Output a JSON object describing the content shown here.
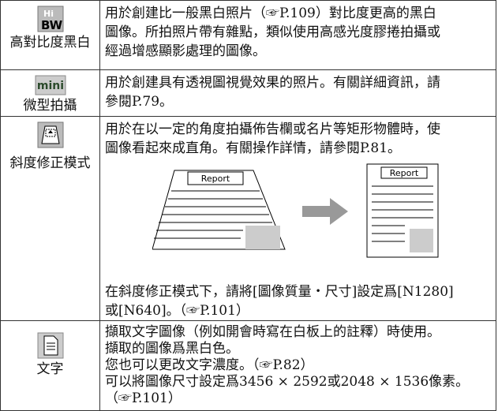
{
  "rows": [
    {
      "icon": {
        "top": "Hi",
        "bottom": "BW"
      },
      "label": "高對比度黑白",
      "lines": [
        "用於創建比一般黑白照片（☞P.109）對比度更高的黑白",
        "圖像。所拍照片帶有雜點，類似使用高感光度膠捲拍攝或",
        "經過增感顯影處理的圖像。"
      ]
    },
    {
      "icon": {
        "text": "mini"
      },
      "label": "微型拍攝",
      "lines": [
        "用於創建具有透視圖視覺效果的照片。有關詳細資訊，請",
        "參閱P.79。"
      ]
    },
    {
      "label": "斜度修正模式",
      "lines": [
        "用於在以一定的角度拍攝佈告欄或名片等矩形物體時，使",
        "圖像看起來成直角。有關操作詳情，請參閱P.81。"
      ],
      "diagram": {
        "before": "Report",
        "after": "Report"
      },
      "lines_after": [
        "在斜度修正模式下，請將[圖像質量・尺寸]設定爲[N1280]",
        "或[N640]。（☞P.101）"
      ]
    },
    {
      "label": "文字",
      "lines": [
        "擷取文字圖像（例如開會時寫在白板上的註釋）時使用。",
        "擷取的圖像爲黑白色。",
        "您也可以更改文字濃度。（☞P.82）",
        "可以將圖像尺寸設定爲3456 × 2592或2048 × 1536像素。",
        "（☞P.101）"
      ]
    }
  ]
}
